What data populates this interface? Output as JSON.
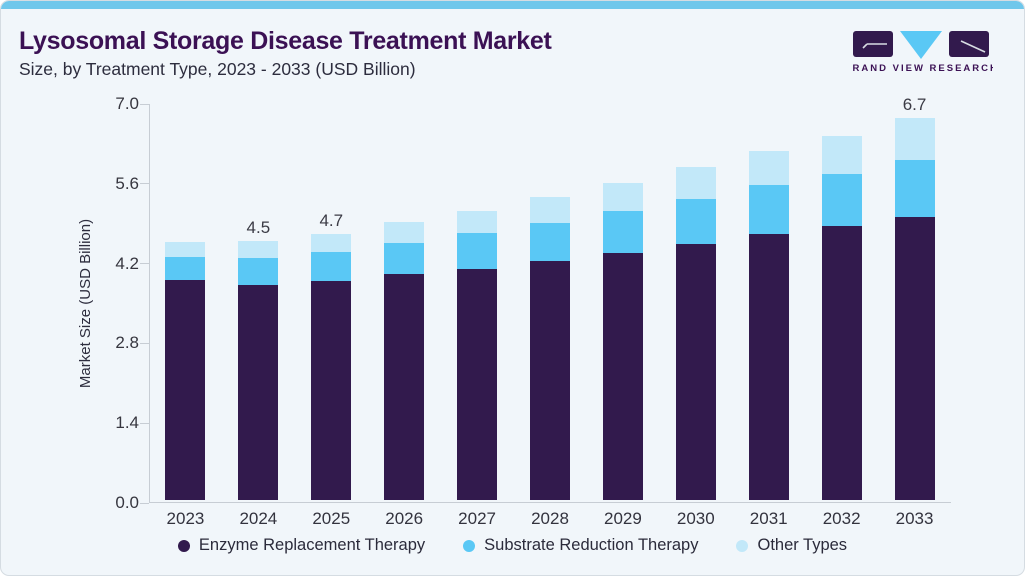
{
  "header": {
    "title": "Lysosomal Storage Disease Treatment Market",
    "subtitle": "Size, by Treatment Type, 2023 - 2033 (USD Billion)",
    "logo_text": "GRAND VIEW RESEARCH"
  },
  "chart_data": {
    "type": "bar",
    "stacked": true,
    "title": "Lysosomal Storage Disease Treatment Market Size, by Treatment Type, 2023 - 2033 (USD Billion)",
    "categories": [
      "2023",
      "2024",
      "2025",
      "2026",
      "2027",
      "2028",
      "2029",
      "2030",
      "2031",
      "2032",
      "2033"
    ],
    "series": [
      {
        "name": "Enzyme Replacement Therapy",
        "color": "#321A4D",
        "values": [
          3.86,
          3.77,
          3.84,
          3.96,
          4.06,
          4.19,
          4.33,
          4.49,
          4.66,
          4.81,
          4.97
        ]
      },
      {
        "name": "Substrate Reduction Therapy",
        "color": "#5AC8F5",
        "values": [
          0.4,
          0.47,
          0.52,
          0.55,
          0.62,
          0.67,
          0.74,
          0.8,
          0.86,
          0.91,
          0.99
        ]
      },
      {
        "name": "Other Types",
        "color": "#C2E8F9",
        "values": [
          0.26,
          0.3,
          0.31,
          0.36,
          0.39,
          0.46,
          0.5,
          0.56,
          0.6,
          0.67,
          0.74
        ]
      }
    ],
    "bar_labels": {
      "2024": "4.5",
      "2025": "4.7",
      "2033": "6.7"
    },
    "ylabel": "Market Size (USD Billion)",
    "yticks": [
      "0.0",
      "1.4",
      "2.8",
      "4.2",
      "5.6",
      "7.0"
    ],
    "ylim": [
      0,
      7.0
    ],
    "grid": false,
    "legend_position": "bottom"
  }
}
